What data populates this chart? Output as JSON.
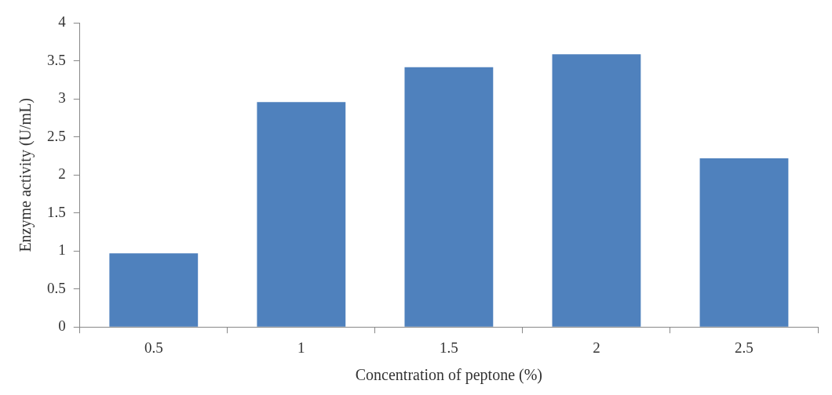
{
  "chart_data": {
    "type": "bar",
    "xlabel": "Concentration of peptone (%)",
    "ylabel": "Enzyme activity (U/mL)",
    "categories": [
      "0.5",
      "1",
      "1.5",
      "2",
      "2.5"
    ],
    "values": [
      0.97,
      2.96,
      3.42,
      3.59,
      2.22
    ],
    "color": "#4f81bd",
    "ylim": [
      0,
      4
    ],
    "yticks": [
      0,
      0.5,
      1,
      1.5,
      2,
      2.5,
      3,
      3.5,
      4
    ],
    "grid": false,
    "legend": false
  }
}
